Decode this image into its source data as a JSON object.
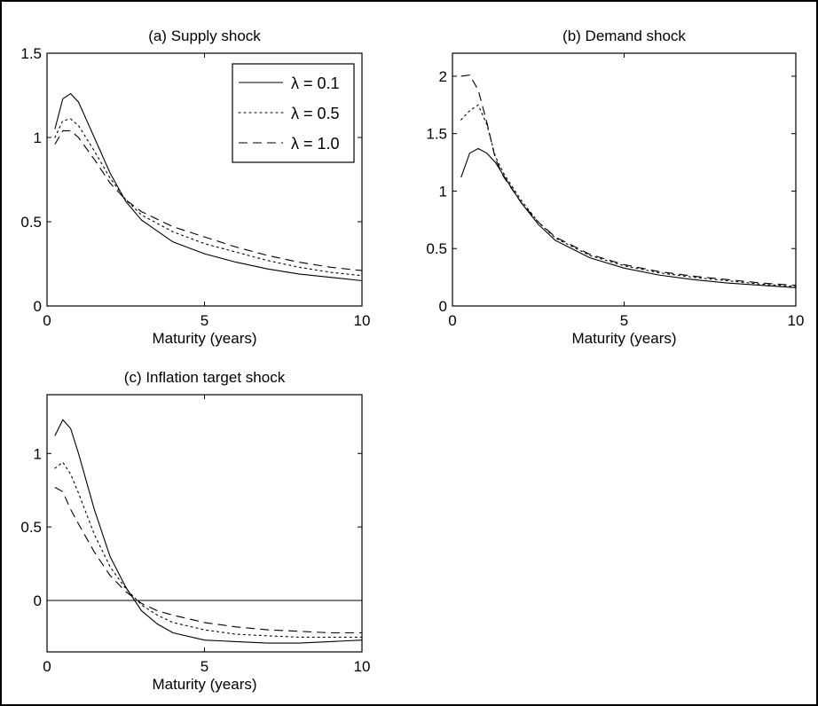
{
  "figure": {
    "styles": {
      "solid": "",
      "dotted": "2 4",
      "dashed": "10 6"
    },
    "legend": [
      {
        "label": "λ = 0.1",
        "style": "solid"
      },
      {
        "label": "λ = 0.5",
        "style": "dotted"
      },
      {
        "label": "λ = 1.0",
        "style": "dashed"
      }
    ]
  },
  "chart_data": [
    {
      "type": "line",
      "title": "(a) Supply shock",
      "xlabel": "Maturity (years)",
      "ylabel": "",
      "xlim": [
        0,
        10
      ],
      "ylim": [
        0,
        1.5
      ],
      "xticks": [
        "0",
        "5",
        "10"
      ],
      "yticks": [
        "0",
        "0.5",
        "1",
        "1.5"
      ],
      "xtick_values": [
        0,
        5,
        10
      ],
      "ytick_values": [
        0,
        0.5,
        1,
        1.5
      ],
      "legend_position": "top-right",
      "x": [
        0.25,
        0.5,
        0.75,
        1.0,
        1.5,
        2.0,
        2.5,
        3.0,
        4.0,
        5.0,
        6.0,
        7.0,
        8.0,
        9.0,
        10.0
      ],
      "series": [
        {
          "name": "λ = 0.1",
          "style": "solid",
          "values": [
            1.05,
            1.23,
            1.26,
            1.21,
            1.0,
            0.79,
            0.62,
            0.51,
            0.38,
            0.31,
            0.26,
            0.22,
            0.19,
            0.17,
            0.15
          ]
        },
        {
          "name": "λ = 0.5",
          "style": "dotted",
          "values": [
            1.0,
            1.1,
            1.11,
            1.07,
            0.92,
            0.76,
            0.63,
            0.54,
            0.44,
            0.37,
            0.32,
            0.27,
            0.23,
            0.2,
            0.18
          ]
        },
        {
          "name": "λ = 1.0",
          "style": "dashed",
          "values": [
            0.96,
            1.04,
            1.04,
            1.0,
            0.87,
            0.73,
            0.63,
            0.56,
            0.47,
            0.41,
            0.35,
            0.3,
            0.26,
            0.23,
            0.21
          ]
        }
      ]
    },
    {
      "type": "line",
      "title": "(b) Demand shock",
      "xlabel": "Maturity (years)",
      "ylabel": "",
      "xlim": [
        0,
        10
      ],
      "ylim": [
        0,
        2.2
      ],
      "xticks": [
        "0",
        "5",
        "10"
      ],
      "yticks": [
        "0",
        "0.5",
        "1",
        "1.5",
        "2"
      ],
      "xtick_values": [
        0,
        5,
        10
      ],
      "ytick_values": [
        0,
        0.5,
        1,
        1.5,
        2
      ],
      "x": [
        0.25,
        0.5,
        0.75,
        1.0,
        1.25,
        1.5,
        2.0,
        2.5,
        3.0,
        4.0,
        5.0,
        6.0,
        7.0,
        8.0,
        9.0,
        10.0
      ],
      "series": [
        {
          "name": "λ = 0.1",
          "style": "solid",
          "values": [
            1.12,
            1.33,
            1.37,
            1.33,
            1.25,
            1.13,
            0.9,
            0.71,
            0.57,
            0.42,
            0.33,
            0.27,
            0.23,
            0.2,
            0.18,
            0.16
          ]
        },
        {
          "name": "λ = 0.5",
          "style": "dotted",
          "values": [
            1.62,
            1.7,
            1.75,
            1.58,
            1.3,
            1.15,
            0.92,
            0.73,
            0.59,
            0.44,
            0.35,
            0.29,
            0.25,
            0.22,
            0.19,
            0.17
          ]
        },
        {
          "name": "λ = 1.0",
          "style": "dashed",
          "values": [
            2.0,
            2.01,
            1.88,
            1.6,
            1.28,
            1.12,
            0.9,
            0.73,
            0.6,
            0.45,
            0.36,
            0.3,
            0.26,
            0.23,
            0.2,
            0.18
          ]
        }
      ]
    },
    {
      "type": "line",
      "title": "(c) Inflation target shock",
      "xlabel": "Maturity (years)",
      "ylabel": "",
      "xlim": [
        0,
        10
      ],
      "ylim": [
        -0.35,
        1.4
      ],
      "xticks": [
        "0",
        "5",
        "10"
      ],
      "yticks": [
        "0",
        "0.5",
        "1"
      ],
      "xtick_values": [
        0,
        5,
        10
      ],
      "ytick_values": [
        0,
        0.5,
        1
      ],
      "zero_line": true,
      "x": [
        0.25,
        0.5,
        0.75,
        1.0,
        1.5,
        2.0,
        2.5,
        3.0,
        3.5,
        4.0,
        5.0,
        6.0,
        7.0,
        8.0,
        9.0,
        10.0
      ],
      "series": [
        {
          "name": "λ = 0.1",
          "style": "solid",
          "values": [
            1.12,
            1.23,
            1.17,
            1.0,
            0.62,
            0.3,
            0.09,
            -0.07,
            -0.16,
            -0.22,
            -0.27,
            -0.28,
            -0.29,
            -0.29,
            -0.28,
            -0.27
          ]
        },
        {
          "name": "λ = 0.5",
          "style": "dotted",
          "values": [
            0.9,
            0.94,
            0.86,
            0.73,
            0.45,
            0.23,
            0.08,
            -0.03,
            -0.1,
            -0.15,
            -0.2,
            -0.23,
            -0.24,
            -0.25,
            -0.25,
            -0.25
          ]
        },
        {
          "name": "λ = 1.0",
          "style": "dashed",
          "values": [
            0.77,
            0.74,
            0.62,
            0.52,
            0.33,
            0.17,
            0.06,
            -0.02,
            -0.07,
            -0.1,
            -0.15,
            -0.18,
            -0.2,
            -0.21,
            -0.22,
            -0.22
          ]
        }
      ]
    }
  ]
}
